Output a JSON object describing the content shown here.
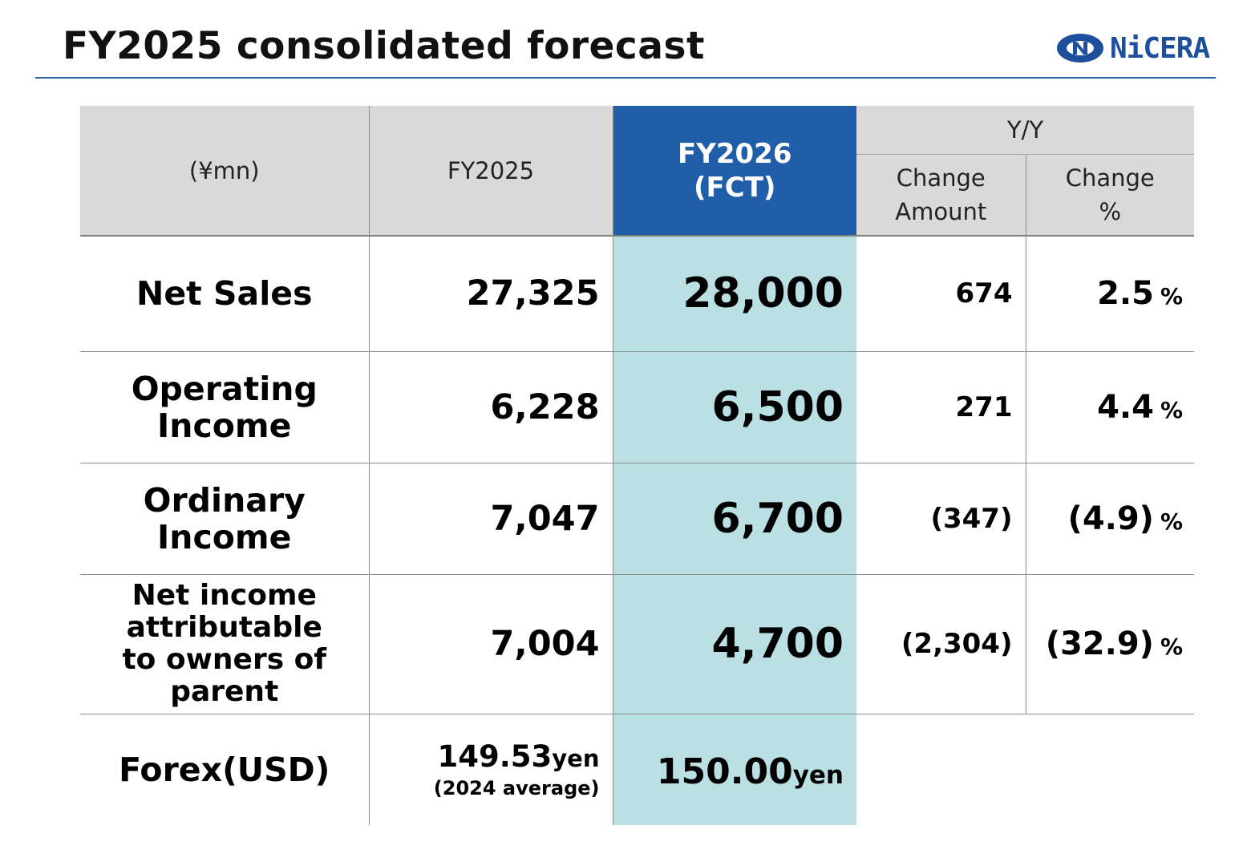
{
  "header": {
    "title": "FY2025 consolidated forecast",
    "logo_text": "NiCERA",
    "logo_icon": "nicera-logo-icon",
    "accent_color": "#2d63a8"
  },
  "table": {
    "unit_label": "(¥mn)",
    "col_prev": "FY2025",
    "col_fct_line1": "FY2026",
    "col_fct_line2": "(FCT)",
    "col_yy": "Y/Y",
    "col_change_amount_l1": "Change",
    "col_change_amount_l2": "Amount",
    "col_change_pct_l1": "Change",
    "col_change_pct_l2": "%",
    "header_gray": "#d9d9d9",
    "header_blue": "#215ea9",
    "forecast_fill": "#bbe0e3",
    "rows": [
      {
        "label_l1": "Net Sales",
        "label_l2": "",
        "prev": "27,325",
        "fct": "28,000",
        "change": "674",
        "pct": "2.5",
        "pct_unit": "%"
      },
      {
        "label_l1": "Operating",
        "label_l2": "Income",
        "prev": "6,228",
        "fct": "6,500",
        "change": "271",
        "pct": "4.4",
        "pct_unit": "%"
      },
      {
        "label_l1": "Ordinary",
        "label_l2": "Income",
        "prev": "7,047",
        "fct": "6,700",
        "change": "(347)",
        "pct": "(4.9)",
        "pct_unit": "%"
      },
      {
        "label_l1": "Net income",
        "label_l2": "attributable",
        "label_l3": "to owners of",
        "label_l4": "parent",
        "prev": "7,004",
        "fct": "4,700",
        "change": "(2,304)",
        "pct": "(32.9)",
        "pct_unit": "%"
      }
    ],
    "forex": {
      "label": "Forex(USD)",
      "prev_value": "149.53",
      "prev_unit": "yen",
      "prev_note": "(2024 average)",
      "fct_value": "150.00",
      "fct_unit": "yen"
    }
  }
}
